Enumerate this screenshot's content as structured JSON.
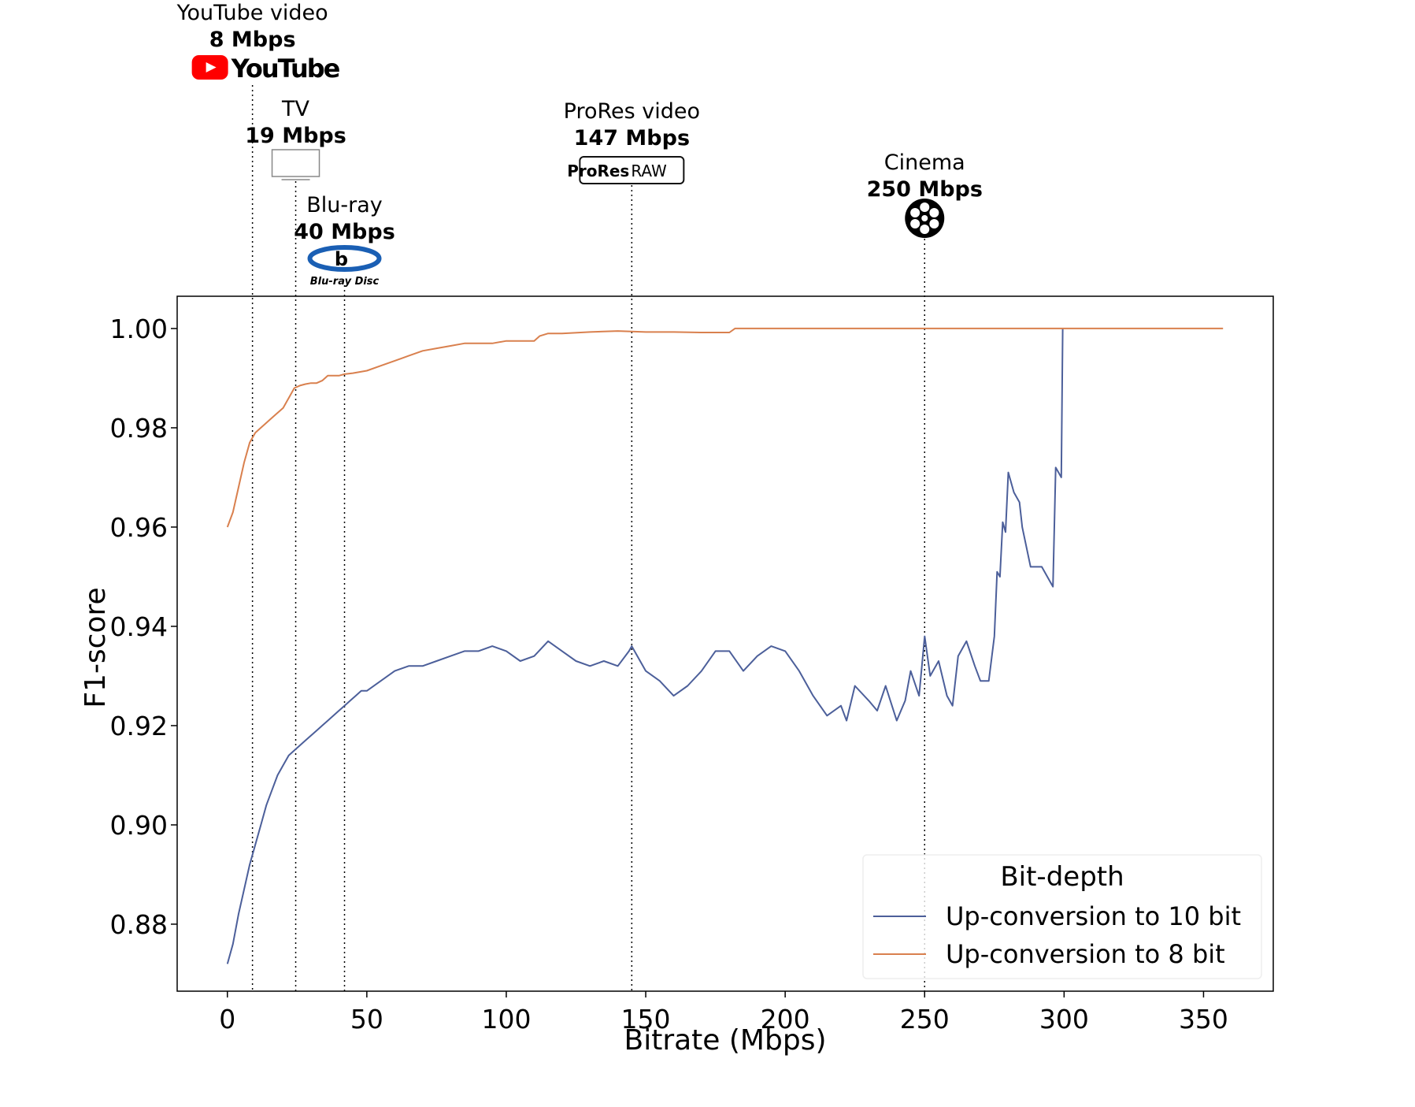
{
  "chart_data": {
    "type": "line",
    "xlabel": "Bitrate (Mbps)",
    "ylabel": "F1-score",
    "xlim": [
      -18,
      375
    ],
    "ylim": [
      0.8665,
      1.0065
    ],
    "xticks": [
      0,
      50,
      100,
      150,
      200,
      250,
      300,
      350
    ],
    "yticks": [
      0.88,
      0.9,
      0.92,
      0.94,
      0.96,
      0.98,
      1.0
    ],
    "xtick_labels": [
      "0",
      "50",
      "100",
      "150",
      "200",
      "250",
      "300",
      "350"
    ],
    "ytick_labels": [
      "0.88",
      "0.90",
      "0.92",
      "0.94",
      "0.96",
      "0.98",
      "1.00"
    ],
    "grid": false,
    "legend": {
      "title": "Bit-depth",
      "placement": "lower-right",
      "entries": [
        "Up-conversion to 10 bit",
        "Up-conversion to 8 bit"
      ]
    },
    "colors": {
      "series_10bit": "#4c5f9a",
      "series_8bit": "#d9804e",
      "reference_line": "#000000"
    },
    "series": [
      {
        "name": "Up-conversion to 10 bit",
        "x": [
          0,
          2,
          4,
          6,
          8,
          10,
          12,
          14,
          16,
          18,
          20,
          22,
          24,
          26,
          28,
          30,
          32,
          34,
          36,
          38,
          40,
          42,
          44,
          46,
          48,
          50,
          55,
          60,
          65,
          70,
          75,
          80,
          85,
          90,
          95,
          100,
          105,
          110,
          115,
          120,
          125,
          130,
          135,
          140,
          144,
          145,
          150,
          155,
          160,
          165,
          170,
          175,
          180,
          185,
          190,
          195,
          200,
          205,
          210,
          215,
          220,
          222,
          225,
          230,
          233,
          236,
          240,
          243,
          245,
          248,
          250,
          252,
          255,
          258,
          260,
          262,
          265,
          268,
          270,
          273,
          275,
          276,
          277,
          278,
          279,
          280,
          282,
          284,
          285,
          288,
          290,
          292,
          295,
          296,
          297,
          298,
          299,
          299.5
        ],
        "y": [
          0.872,
          0.876,
          0.882,
          0.887,
          0.892,
          0.896,
          0.9,
          0.904,
          0.907,
          0.91,
          0.912,
          0.914,
          0.915,
          0.916,
          0.917,
          0.918,
          0.919,
          0.92,
          0.921,
          0.922,
          0.923,
          0.924,
          0.925,
          0.926,
          0.927,
          0.927,
          0.929,
          0.931,
          0.932,
          0.932,
          0.933,
          0.934,
          0.935,
          0.935,
          0.936,
          0.935,
          0.933,
          0.934,
          0.937,
          0.935,
          0.933,
          0.932,
          0.933,
          0.932,
          0.935,
          0.936,
          0.931,
          0.929,
          0.926,
          0.928,
          0.931,
          0.935,
          0.935,
          0.931,
          0.934,
          0.936,
          0.935,
          0.931,
          0.926,
          0.922,
          0.924,
          0.921,
          0.928,
          0.925,
          0.923,
          0.928,
          0.921,
          0.925,
          0.931,
          0.926,
          0.938,
          0.93,
          0.933,
          0.926,
          0.924,
          0.934,
          0.937,
          0.932,
          0.929,
          0.929,
          0.938,
          0.951,
          0.95,
          0.961,
          0.959,
          0.971,
          0.967,
          0.965,
          0.96,
          0.952,
          0.952,
          0.952,
          0.949,
          0.948,
          0.972,
          0.971,
          0.97,
          1.0
        ]
      },
      {
        "name": "Up-conversion to 8 bit",
        "x": [
          0,
          2,
          4,
          6,
          8,
          10,
          12,
          14,
          16,
          18,
          20,
          22,
          24,
          26,
          28,
          30,
          32,
          34,
          36,
          38,
          40,
          42,
          45,
          50,
          55,
          60,
          65,
          70,
          75,
          80,
          85,
          90,
          95,
          100,
          110,
          112,
          115,
          120,
          130,
          140,
          150,
          160,
          170,
          180,
          182,
          190,
          200,
          250,
          300,
          350,
          357
        ],
        "y": [
          0.96,
          0.963,
          0.968,
          0.973,
          0.977,
          0.979,
          0.98,
          0.981,
          0.982,
          0.983,
          0.984,
          0.986,
          0.988,
          0.9885,
          0.9888,
          0.989,
          0.989,
          0.9895,
          0.9905,
          0.9905,
          0.9905,
          0.9908,
          0.991,
          0.9915,
          0.9925,
          0.9935,
          0.9945,
          0.9955,
          0.996,
          0.9965,
          0.997,
          0.997,
          0.997,
          0.9975,
          0.9975,
          0.9985,
          0.999,
          0.999,
          0.9993,
          0.9995,
          0.9993,
          0.9993,
          0.9992,
          0.9992,
          1.0,
          1.0,
          1.0,
          1.0,
          1.0,
          1.0,
          1.0
        ]
      }
    ],
    "annotations": [
      {
        "key": "youtube",
        "line1": "YouTube video",
        "line2": "8 Mbps",
        "x": 9,
        "icon": "youtube-logo",
        "logo_text": "YouTube"
      },
      {
        "key": "tv",
        "line1": "TV",
        "line2": "19 Mbps",
        "x": 24.5,
        "icon": "tv-icon"
      },
      {
        "key": "bluray",
        "line1": "Blu-ray",
        "line2": "40 Mbps",
        "x": 42,
        "icon": "bluray-logo",
        "logo_text": "Blu-ray Disc"
      },
      {
        "key": "prores",
        "line1": "ProRes video",
        "line2": "147 Mbps",
        "x": 145,
        "icon": "prores-raw-logo",
        "logo_text_a": "ProRes",
        "logo_text_b": "RAW"
      },
      {
        "key": "cinema",
        "line1": "Cinema",
        "line2": "250 Mbps",
        "x": 250,
        "icon": "film-reel-icon"
      }
    ]
  }
}
